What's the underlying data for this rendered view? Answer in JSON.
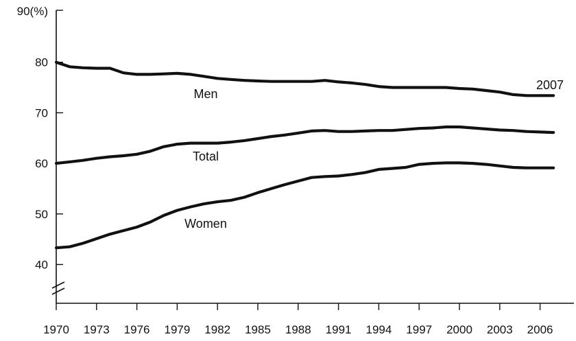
{
  "chart_data": {
    "type": "line",
    "title": "",
    "xlabel": "",
    "ylabel": "",
    "y_axis_top_label": "90(%)",
    "end_label": "2007",
    "x_tick_labels": [
      "1970",
      "1973",
      "1976",
      "1979",
      "1982",
      "1985",
      "1988",
      "1991",
      "1994",
      "1997",
      "2000",
      "2003",
      "2006"
    ],
    "y_tick_labels": [
      "40",
      "50",
      "60",
      "70",
      "80"
    ],
    "xlim": [
      1970,
      2008
    ],
    "ylim": [
      40,
      90
    ],
    "axis_break": true,
    "grid": false,
    "legend": "none",
    "x": [
      1970,
      1971,
      1972,
      1973,
      1974,
      1975,
      1976,
      1977,
      1978,
      1979,
      1980,
      1981,
      1982,
      1983,
      1984,
      1985,
      1986,
      1987,
      1988,
      1989,
      1990,
      1991,
      1992,
      1993,
      1994,
      1995,
      1996,
      1997,
      1998,
      1999,
      2000,
      2001,
      2002,
      2003,
      2004,
      2005,
      2006,
      2007
    ],
    "series": [
      {
        "name": "Men",
        "color": "#111111",
        "values": [
          80.0,
          79.1,
          78.9,
          78.8,
          78.8,
          77.9,
          77.6,
          77.6,
          77.7,
          77.8,
          77.6,
          77.2,
          76.8,
          76.6,
          76.4,
          76.3,
          76.2,
          76.2,
          76.2,
          76.2,
          76.4,
          76.1,
          75.9,
          75.6,
          75.2,
          75.0,
          75.0,
          75.0,
          75.0,
          75.0,
          74.8,
          74.7,
          74.4,
          74.1,
          73.6,
          73.4,
          73.4,
          73.4
        ]
      },
      {
        "name": "Total",
        "color": "#111111",
        "values": [
          60.0,
          60.3,
          60.6,
          61.0,
          61.3,
          61.5,
          61.8,
          62.4,
          63.3,
          63.8,
          64.0,
          64.0,
          64.0,
          64.2,
          64.5,
          64.9,
          65.3,
          65.6,
          66.0,
          66.4,
          66.5,
          66.3,
          66.3,
          66.4,
          66.5,
          66.5,
          66.7,
          66.9,
          67.0,
          67.2,
          67.2,
          67.0,
          66.8,
          66.6,
          66.5,
          66.3,
          66.2,
          66.1
        ]
      },
      {
        "name": "Women",
        "color": "#111111",
        "values": [
          43.3,
          43.5,
          44.2,
          45.1,
          46.0,
          46.7,
          47.4,
          48.4,
          49.7,
          50.7,
          51.4,
          52.0,
          52.4,
          52.7,
          53.3,
          54.2,
          55.0,
          55.8,
          56.5,
          57.2,
          57.4,
          57.5,
          57.8,
          58.2,
          58.8,
          59.0,
          59.2,
          59.8,
          60.0,
          60.1,
          60.1,
          60.0,
          59.8,
          59.5,
          59.2,
          59.1,
          59.1,
          59.1
        ]
      }
    ]
  }
}
